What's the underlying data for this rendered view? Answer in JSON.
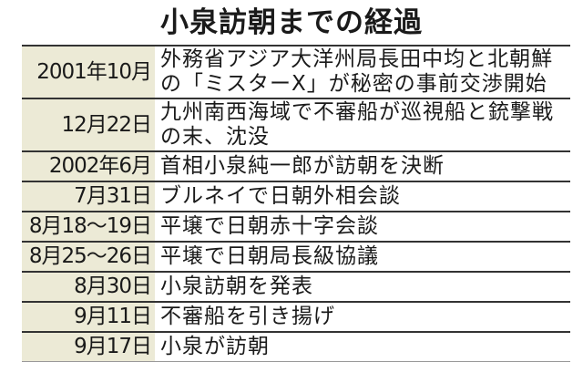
{
  "title": "小泉訪朝までの経過",
  "rows": [
    {
      "date": "2001年10月",
      "event": "外務省アジア大洋州局長田中均と北朝鮮の「ミスターX」が秘密の事前交渉開始"
    },
    {
      "date": "12月22日",
      "event": "九州南西海域で不審船が巡視船と銃撃戦の末、沈没"
    },
    {
      "date": "2002年6月",
      "event": "首相小泉純一郎が訪朝を決断"
    },
    {
      "date": "7月31日",
      "event": "ブルネイで日朝外相会談"
    },
    {
      "date": "8月18〜19日",
      "event": "平壌で日朝赤十字会談"
    },
    {
      "date": "8月25〜26日",
      "event": "平壌で日朝局長級協議"
    },
    {
      "date": "8月30日",
      "event": "小泉訪朝を発表"
    },
    {
      "date": "9月11日",
      "event": "不審船を引き揚げ"
    },
    {
      "date": "9月17日",
      "event": "小泉が訪朝"
    }
  ],
  "colors": {
    "date_column_bg": "#ecead6",
    "rule": "#333333"
  }
}
